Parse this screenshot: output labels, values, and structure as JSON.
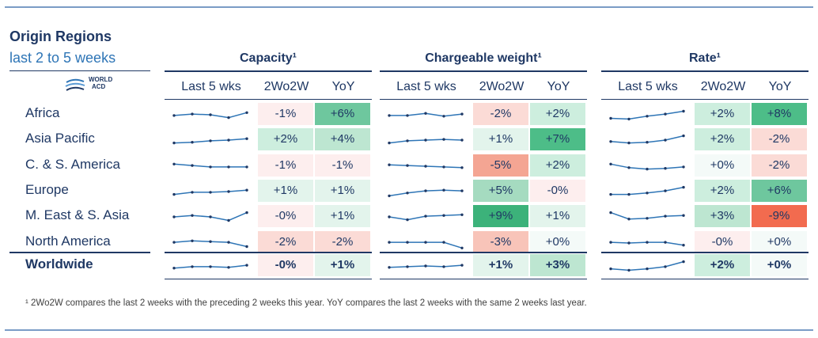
{
  "header": {
    "title": "Origin Regions",
    "subtitle": "last 2 to 5 weeks",
    "logo_text_line1": "WORLD",
    "logo_text_line2": "ACD"
  },
  "colors": {
    "rule": "#7a9cc6",
    "text": "#1f3864",
    "spark": "#2e75b6"
  },
  "footnote": "¹ 2Wo2W compares the last 2 weeks with the preceding 2 weeks this year. YoY compares the last 2 weeks with the same 2 weeks last year.",
  "chart_data": {
    "type": "table",
    "groups": [
      {
        "name": "Capacity¹",
        "columns": [
          "Last 5 wks",
          "2Wo2W",
          "YoY"
        ]
      },
      {
        "name": "Chargeable weight¹",
        "columns": [
          "Last 5 wks",
          "2Wo2W",
          "YoY"
        ]
      },
      {
        "name": "Rate¹",
        "columns": [
          "Last 5 wks",
          "2Wo2W",
          "YoY"
        ]
      }
    ],
    "rows": [
      {
        "region": "Africa",
        "capacity": {
          "trend": [
            0.45,
            0.55,
            0.5,
            0.3,
            0.65
          ],
          "wow": "-1%",
          "yoy": "+6%"
        },
        "weight": {
          "trend": [
            0.45,
            0.45,
            0.6,
            0.4,
            0.55
          ],
          "wow": "-2%",
          "yoy": "+2%"
        },
        "rate": {
          "trend": [
            0.25,
            0.2,
            0.4,
            0.55,
            0.75
          ],
          "wow": "+2%",
          "yoy": "+8%"
        }
      },
      {
        "region": "Asia Pacific",
        "capacity": {
          "trend": [
            0.3,
            0.35,
            0.45,
            0.5,
            0.6
          ],
          "wow": "+2%",
          "yoy": "+4%"
        },
        "weight": {
          "trend": [
            0.3,
            0.45,
            0.5,
            0.55,
            0.5
          ],
          "wow": "+1%",
          "yoy": "+7%"
        },
        "rate": {
          "trend": [
            0.4,
            0.3,
            0.35,
            0.5,
            0.8
          ],
          "wow": "+2%",
          "yoy": "-2%"
        }
      },
      {
        "region": "C. & S. America",
        "capacity": {
          "trend": [
            0.65,
            0.55,
            0.45,
            0.45,
            0.45
          ],
          "wow": "-1%",
          "yoy": "-1%"
        },
        "weight": {
          "trend": [
            0.6,
            0.55,
            0.5,
            0.45,
            0.4
          ],
          "wow": "-5%",
          "yoy": "+2%"
        },
        "rate": {
          "trend": [
            0.65,
            0.4,
            0.3,
            0.35,
            0.45
          ],
          "wow": "+0%",
          "yoy": "-2%"
        }
      },
      {
        "region": "Europe",
        "capacity": {
          "trend": [
            0.3,
            0.45,
            0.45,
            0.5,
            0.6
          ],
          "wow": "+1%",
          "yoy": "+1%"
        },
        "weight": {
          "trend": [
            0.2,
            0.4,
            0.55,
            0.6,
            0.55
          ],
          "wow": "+5%",
          "yoy": "-0%"
        },
        "rate": {
          "trend": [
            0.3,
            0.3,
            0.4,
            0.55,
            0.8
          ],
          "wow": "+2%",
          "yoy": "+6%"
        }
      },
      {
        "region": "M. East & S. Asia",
        "capacity": {
          "trend": [
            0.5,
            0.6,
            0.5,
            0.25,
            0.8
          ],
          "wow": "-0%",
          "yoy": "+1%"
        },
        "weight": {
          "trend": [
            0.5,
            0.3,
            0.55,
            0.6,
            0.65
          ],
          "wow": "+9%",
          "yoy": "+1%"
        },
        "rate": {
          "trend": [
            0.8,
            0.35,
            0.4,
            0.55,
            0.6
          ],
          "wow": "+3%",
          "yoy": "-9%"
        }
      },
      {
        "region": "North America",
        "capacity": {
          "trend": [
            0.55,
            0.65,
            0.6,
            0.55,
            0.25
          ],
          "wow": "-2%",
          "yoy": "-2%"
        },
        "weight": {
          "trend": [
            0.55,
            0.55,
            0.55,
            0.55,
            0.15
          ],
          "wow": "-3%",
          "yoy": "+0%"
        },
        "rate": {
          "trend": [
            0.55,
            0.5,
            0.55,
            0.55,
            0.35
          ],
          "wow": "-0%",
          "yoy": "+0%"
        }
      }
    ],
    "total": {
      "region": "Worldwide",
      "capacity": {
        "trend": [
          0.35,
          0.45,
          0.45,
          0.4,
          0.55
        ],
        "wow": "-0%",
        "yoy": "+1%"
      },
      "weight": {
        "trend": [
          0.4,
          0.45,
          0.5,
          0.45,
          0.55
        ],
        "wow": "+1%",
        "yoy": "+3%"
      },
      "rate": {
        "trend": [
          0.3,
          0.2,
          0.3,
          0.45,
          0.8
        ],
        "wow": "+2%",
        "yoy": "+0%"
      }
    }
  }
}
